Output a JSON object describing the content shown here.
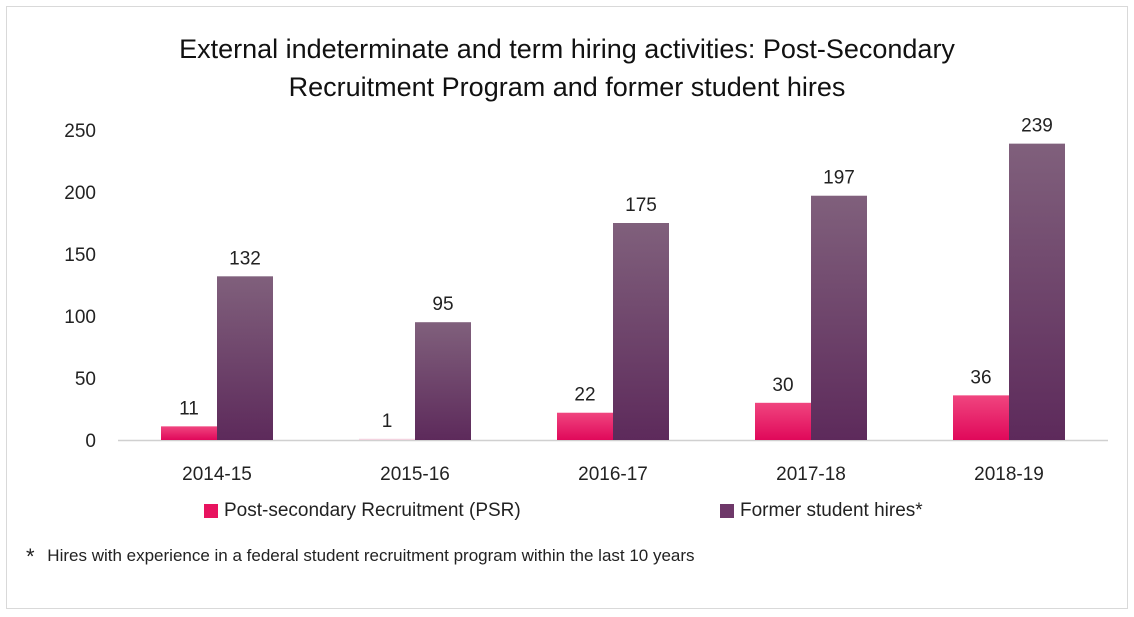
{
  "chart_data": {
    "type": "bar",
    "title": "External indeterminate and term hiring activities: Post-Secondary Recruitment Program and former student hires",
    "title_lines": [
      "External indeterminate and term hiring activities: Post-Secondary",
      "Recruitment Program and former student hires"
    ],
    "categories": [
      "2014-15",
      "2015-16",
      "2016-17",
      "2017-18",
      "2018-19"
    ],
    "series": [
      {
        "name": "Post-secondary Recruitment (PSR)",
        "values": [
          11,
          1,
          22,
          30,
          36
        ],
        "color": "#e8135f"
      },
      {
        "name": "Former student hires*",
        "values": [
          132,
          95,
          175,
          197,
          239
        ],
        "color": "#6e3869"
      }
    ],
    "ylim": [
      0,
      250
    ],
    "yticks": [
      "0",
      "50",
      "100",
      "150",
      "200",
      "250"
    ],
    "grid": false,
    "legend": "bottom"
  },
  "footnote": {
    "marker": "*",
    "text": "Hires with experience in a federal student recruitment program within the last 10 years"
  }
}
